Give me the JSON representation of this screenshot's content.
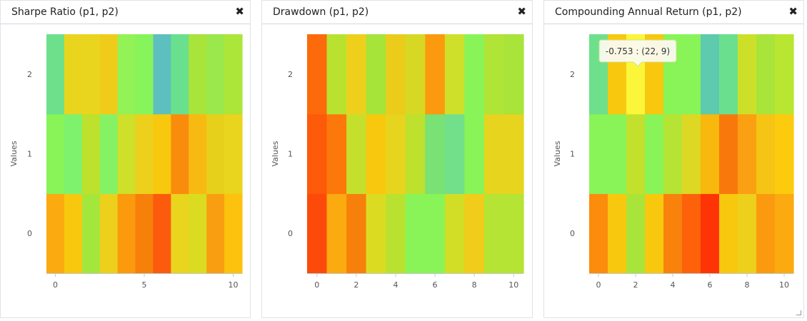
{
  "panels": [
    {
      "title": "Sharpe Ratio (p1, p2)",
      "close_icon": "close-icon",
      "close_glyph": "✖"
    },
    {
      "title": "Drawdown (p1, p2)",
      "close_icon": "close-icon",
      "close_glyph": "✖"
    },
    {
      "title": "Compounding Annual Return (p1, p2)",
      "close_icon": "close-icon",
      "close_glyph": "✖"
    }
  ],
  "tooltip": {
    "text": "-0.753 : (22, 9)"
  },
  "chart_data": [
    {
      "type": "heatmap",
      "title": "Sharpe Ratio (p1, p2)",
      "ylabel": "Values",
      "x_ticks": [
        0,
        5,
        10
      ],
      "y_ticks": [
        0,
        1,
        2
      ],
      "xlim": [
        -0.5,
        10.5
      ],
      "ylim": [
        -0.5,
        2.5
      ],
      "grid": false,
      "colors": [
        [
          "#fbaa10",
          "#f8c80e",
          "#a4e73c",
          "#ecd01c",
          "#fa9a0c",
          "#f7800b",
          "#fc5a0c",
          "#e9d41e",
          "#dbdc22",
          "#f99e10",
          "#fcc20e"
        ],
        [
          "#88f458",
          "#7ef26c",
          "#bde12c",
          "#84f264",
          "#cee02a",
          "#ecd01c",
          "#f8c80e",
          "#f98c0c",
          "#f7ba12",
          "#e7d01c",
          "#e9d41e"
        ],
        [
          "#6ee08c",
          "#e9d41e",
          "#e9d41e",
          "#f0cc1a",
          "#92f256",
          "#86f45a",
          "#5ec0be",
          "#6ae08e",
          "#a8e43a",
          "#9ae84c",
          "#ace638"
        ]
      ]
    },
    {
      "type": "heatmap",
      "title": "Drawdown (p1, p2)",
      "ylabel": "Values",
      "x_ticks": [
        0,
        2,
        4,
        6,
        8,
        10
      ],
      "y_ticks": [
        0,
        1,
        2
      ],
      "xlim": [
        -0.5,
        10.5
      ],
      "ylim": [
        -0.5,
        2.5
      ],
      "grid": false,
      "colors": [
        [
          "#fd4a0a",
          "#fbaa10",
          "#f7800b",
          "#dbdc22",
          "#b9e230",
          "#88f458",
          "#88f458",
          "#d2de26",
          "#f2cc1a",
          "#b5e434",
          "#b5e434"
        ],
        [
          "#fd5a0a",
          "#fd780b",
          "#c5e02c",
          "#f8c80e",
          "#e6d41e",
          "#bde12c",
          "#7ae274",
          "#72e08a",
          "#88f458",
          "#e6d41e",
          "#e6d41e"
        ],
        [
          "#fd6a0b",
          "#b9e230",
          "#eed01c",
          "#a6e43a",
          "#eccc1a",
          "#d6d824",
          "#fb9a0e",
          "#cee02a",
          "#88f458",
          "#b0e436",
          "#a8e43a"
        ]
      ]
    },
    {
      "type": "heatmap",
      "title": "Compounding Annual Return (p1, p2)",
      "ylabel": "Values",
      "x_ticks": [
        0,
        2,
        4,
        6,
        8,
        10
      ],
      "y_ticks": [
        0,
        1,
        2
      ],
      "xlim": [
        -0.5,
        10.5
      ],
      "ylim": [
        -0.5,
        2.5
      ],
      "grid": false,
      "colors": [
        [
          "#fb8c0c",
          "#f8c80e",
          "#a8e43a",
          "#f8c80e",
          "#f8820b",
          "#fd620a",
          "#fe3406",
          "#f8c80e",
          "#ecd01c",
          "#fb9a0e",
          "#fbaa10"
        ],
        [
          "#88f458",
          "#88f458",
          "#c3e02c",
          "#88f458",
          "#b5e434",
          "#dcd824",
          "#f8b80e",
          "#f9780b",
          "#faa012",
          "#f6c414",
          "#fccb0e"
        ],
        [
          "#6ee08c",
          "#f8c80e",
          "#fbf63a",
          "#f8c80e",
          "#88f458",
          "#88f458",
          "#5ecaae",
          "#6ae08e",
          "#cce02a",
          "#a8e43a",
          "#b9e630"
        ]
      ],
      "highlight": {
        "col": 2,
        "row": 2,
        "label": "-0.753 : (22, 9)"
      }
    }
  ]
}
